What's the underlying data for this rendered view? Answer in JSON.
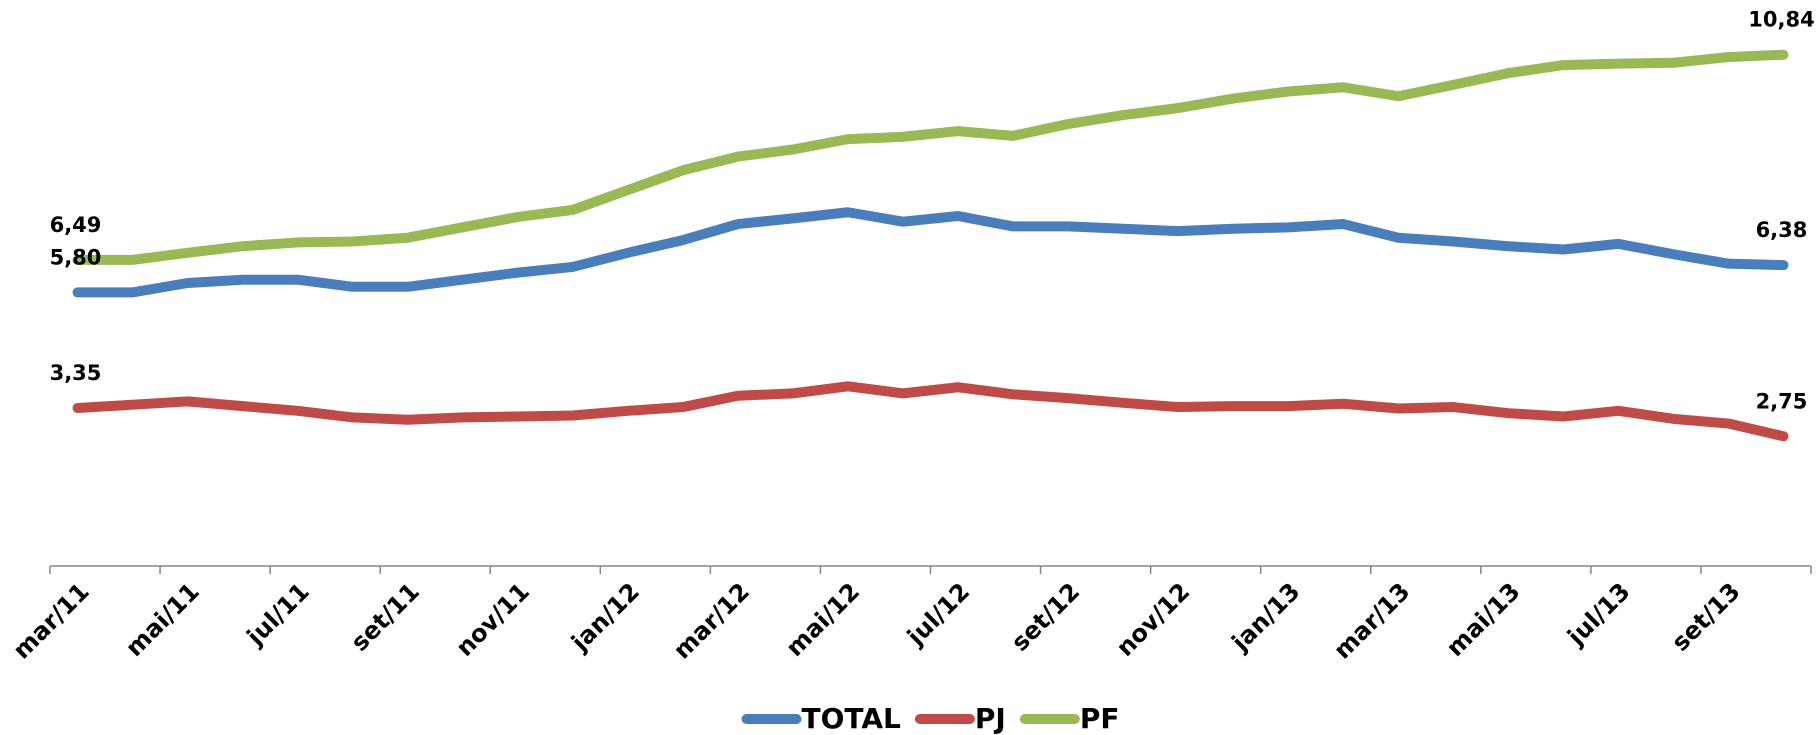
{
  "chart_data": {
    "type": "line",
    "categories": [
      "mar/11",
      null,
      "mai/11",
      null,
      "jul/11",
      null,
      "set/11",
      null,
      "nov/11",
      null,
      "jan/12",
      null,
      "mar/12",
      null,
      "mai/12",
      null,
      "jul/12",
      null,
      "set/12",
      null,
      "nov/12",
      null,
      "jan/13",
      null,
      "mar/13",
      null,
      "mai/13",
      null,
      "jul/13",
      null,
      "set/13",
      null
    ],
    "series": [
      {
        "name": "TOTAL",
        "color": "#4a7ebb",
        "values": [
          5.8,
          5.8,
          6.0,
          6.07,
          6.07,
          5.92,
          5.92,
          6.07,
          6.22,
          6.34,
          6.64,
          6.91,
          7.25,
          7.37,
          7.5,
          7.3,
          7.42,
          7.2,
          7.2,
          7.15,
          7.1,
          7.15,
          7.18,
          7.25,
          6.96,
          6.88,
          6.78,
          6.71,
          6.83,
          6.61,
          6.41,
          6.38
        ],
        "value_labels": [
          "5,80",
          null,
          null,
          null,
          null,
          null,
          null,
          null,
          null,
          null,
          null,
          null,
          null,
          null,
          null,
          null,
          null,
          null,
          null,
          null,
          null,
          null,
          null,
          null,
          null,
          null,
          null,
          null,
          null,
          null,
          null,
          "6,38"
        ]
      },
      {
        "name": "PJ",
        "color": "#be4b48",
        "values": [
          3.35,
          3.42,
          3.49,
          3.39,
          3.29,
          3.15,
          3.1,
          3.15,
          3.17,
          3.19,
          3.29,
          3.37,
          3.61,
          3.66,
          3.81,
          3.66,
          3.79,
          3.64,
          3.56,
          3.46,
          3.37,
          3.39,
          3.39,
          3.44,
          3.34,
          3.37,
          3.24,
          3.17,
          3.29,
          3.12,
          3.02,
          2.75
        ],
        "value_labels": [
          "3,35",
          null,
          null,
          null,
          null,
          null,
          null,
          null,
          null,
          null,
          null,
          null,
          null,
          null,
          null,
          null,
          null,
          null,
          null,
          null,
          null,
          null,
          null,
          null,
          null,
          null,
          null,
          null,
          null,
          null,
          null,
          "2,75"
        ]
      },
      {
        "name": "PF",
        "color": "#98b954",
        "values": [
          6.49,
          6.49,
          6.64,
          6.78,
          6.86,
          6.88,
          6.96,
          7.18,
          7.4,
          7.55,
          7.97,
          8.39,
          8.68,
          8.83,
          9.05,
          9.1,
          9.22,
          9.12,
          9.37,
          9.56,
          9.71,
          9.91,
          10.06,
          10.15,
          9.96,
          10.2,
          10.45,
          10.62,
          10.65,
          10.67,
          10.79,
          10.84
        ],
        "value_labels": [
          "6,49",
          null,
          null,
          null,
          null,
          null,
          null,
          null,
          null,
          null,
          null,
          null,
          null,
          null,
          null,
          null,
          null,
          null,
          null,
          null,
          null,
          null,
          null,
          null,
          null,
          null,
          null,
          null,
          null,
          null,
          null,
          "10,84"
        ]
      }
    ],
    "ylim": [
      0,
      12
    ],
    "legend": "bottom"
  }
}
